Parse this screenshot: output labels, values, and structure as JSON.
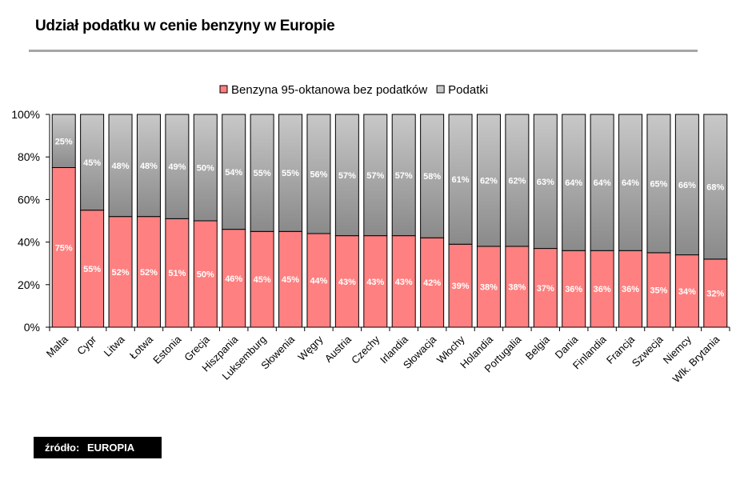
{
  "page": {
    "title": "Udział podatku w cenie benzyny w Europie",
    "source_label": "źródło:",
    "source_value": "EUROPIA"
  },
  "colors": {
    "base": "#ff8080",
    "tax_top": "#c8c8c8",
    "tax_bottom": "#8a8a8a",
    "grid": "#000000"
  },
  "chart_data": {
    "type": "bar",
    "stacked": true,
    "percent": true,
    "title": "",
    "xlabel": "",
    "ylabel": "",
    "ylim": [
      0,
      100
    ],
    "yticks": [
      "0%",
      "20%",
      "40%",
      "60%",
      "80%",
      "100%"
    ],
    "legend_position": "top",
    "categories": [
      "Malta",
      "Cypr",
      "Litwa",
      "Łotwa",
      "Estonia",
      "Grecja",
      "Hiszpania",
      "Luksemburg",
      "Słowenia",
      "Węgry",
      "Austria",
      "Czechy",
      "Irlandia",
      "Słowacja",
      "Włochy",
      "Holandia",
      "Portugalia",
      "Belgia",
      "Dania",
      "Finlandia",
      "Francja",
      "Szwecja",
      "Niemcy",
      "Wlk. Brytania"
    ],
    "series": [
      {
        "name": "Benzyna 95-oktanowa bez podatków",
        "values": [
          75,
          55,
          52,
          52,
          51,
          50,
          46,
          45,
          45,
          44,
          43,
          43,
          43,
          42,
          39,
          38,
          38,
          37,
          36,
          36,
          36,
          35,
          34,
          32
        ],
        "labels": [
          "75%",
          "55%",
          "52%",
          "52%",
          "51%",
          "50%",
          "46%",
          "45%",
          "45%",
          "44%",
          "43%",
          "43%",
          "43%",
          "42%",
          "39%",
          "38%",
          "38%",
          "37%",
          "36%",
          "36%",
          "36%",
          "35%",
          "34%",
          "32%"
        ]
      },
      {
        "name": "Podatki",
        "values": [
          25,
          45,
          48,
          48,
          49,
          50,
          54,
          55,
          55,
          56,
          57,
          57,
          57,
          58,
          61,
          62,
          62,
          63,
          64,
          64,
          64,
          65,
          66,
          68
        ],
        "labels": [
          "25%",
          "45%",
          "48%",
          "48%",
          "49%",
          "50%",
          "54%",
          "55%",
          "55%",
          "56%",
          "57%",
          "57%",
          "57%",
          "58%",
          "61%",
          "62%",
          "62%",
          "63%",
          "64%",
          "64%",
          "64%",
          "65%",
          "66%",
          "68%"
        ]
      }
    ]
  }
}
